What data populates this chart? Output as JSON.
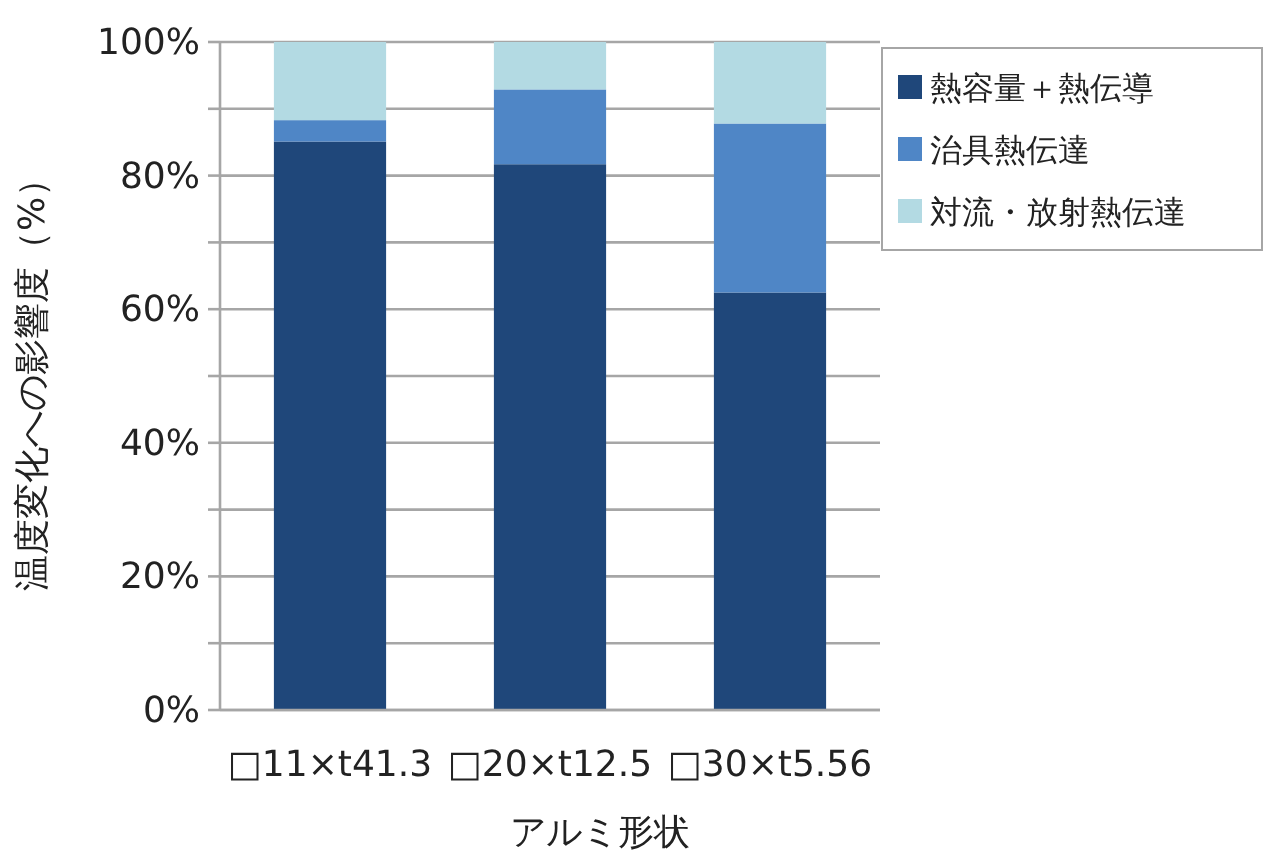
{
  "chart_data": {
    "type": "bar",
    "stacked": true,
    "xlabel": "アルミ形状",
    "ylabel": "温度変化への影響度（%）",
    "categories": [
      "□11×t41.3",
      "□20×t12.5",
      "□30×t5.56"
    ],
    "series": [
      {
        "name": "熱容量＋熱伝導",
        "color": "#1f477a",
        "values": [
          85.1,
          81.7,
          62.5
        ]
      },
      {
        "name": "治具熱伝達",
        "color": "#4f86c6",
        "values": [
          3.2,
          11.2,
          25.3
        ]
      },
      {
        "name": "対流・放射熱伝達",
        "color": "#b3dae3",
        "values": [
          11.7,
          7.1,
          12.2
        ]
      }
    ],
    "ylim": [
      0,
      100
    ],
    "yticks": [
      {
        "value": 0,
        "label": "0%"
      },
      {
        "value": 10,
        "label": null
      },
      {
        "value": 20,
        "label": "20%"
      },
      {
        "value": 30,
        "label": null
      },
      {
        "value": 40,
        "label": "40%"
      },
      {
        "value": 50,
        "label": null
      },
      {
        "value": 60,
        "label": "60%"
      },
      {
        "value": 70,
        "label": null
      },
      {
        "value": 80,
        "label": "80%"
      },
      {
        "value": 90,
        "label": null
      },
      {
        "value": 100,
        "label": "100%"
      }
    ],
    "grid": "y",
    "legend": "top right"
  }
}
